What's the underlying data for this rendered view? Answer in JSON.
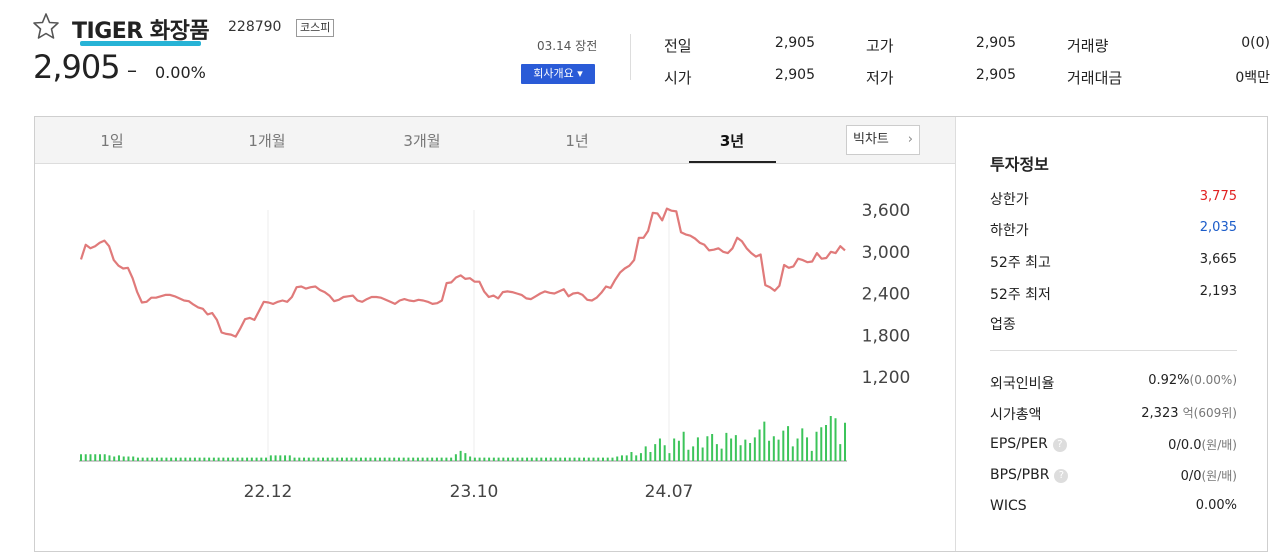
{
  "header": {
    "name": "TIGER 화장품",
    "code": "228790",
    "market": "코스피",
    "price": "2,905",
    "change_sign": "–",
    "change_pct": "0.00%",
    "date": "03.14 장전",
    "company_button": "회사개요 ▾"
  },
  "quotes": [
    {
      "label": "전일",
      "value": "2,905"
    },
    {
      "label": "고가",
      "value": "2,905"
    },
    {
      "label": "거래량",
      "value": "0(0)"
    },
    {
      "label": "시가",
      "value": "2,905"
    },
    {
      "label": "저가",
      "value": "2,905"
    },
    {
      "label": "거래대금",
      "value": "0백만"
    }
  ],
  "tabs": [
    "1일",
    "1개월",
    "3개월",
    "1년",
    "3년"
  ],
  "active_tab": "3년",
  "big_chart_button": "빅차트",
  "chart_data": {
    "type": "line",
    "y_ticks": [
      "3,600",
      "3,000",
      "2,400",
      "1,800",
      "1,200"
    ],
    "x_ticks": [
      "22.12",
      "23.10",
      "24.07"
    ],
    "ylim": [
      1200,
      3600
    ],
    "line_color": "#e07a7a",
    "volume_color": "#3cc45a",
    "series": [
      {
        "values": [
          2890,
          3100,
          3050,
          3080,
          3130,
          3160,
          3080,
          2880,
          2800,
          2760,
          2770,
          2620,
          2420,
          2270,
          2280,
          2340,
          2340,
          2360,
          2380,
          2380,
          2360,
          2330,
          2300,
          2290,
          2240,
          2200,
          2180,
          2100,
          2120,
          2020,
          1840,
          1820,
          1810,
          1780,
          1900,
          2030,
          2050,
          2020,
          2150,
          2280,
          2270,
          2250,
          2280,
          2300,
          2280,
          2350,
          2490,
          2500,
          2470,
          2490,
          2500,
          2450,
          2420,
          2370,
          2290,
          2310,
          2350,
          2360,
          2370,
          2300,
          2280,
          2320,
          2350,
          2350,
          2340,
          2310,
          2280,
          2250,
          2300,
          2320,
          2300,
          2290,
          2310,
          2300,
          2280,
          2250,
          2260,
          2300,
          2550,
          2560,
          2630,
          2660,
          2610,
          2620,
          2570,
          2570,
          2430,
          2350,
          2370,
          2330,
          2420,
          2430,
          2420,
          2400,
          2380,
          2330,
          2320,
          2360,
          2400,
          2430,
          2410,
          2400,
          2430,
          2460,
          2360,
          2400,
          2410,
          2380,
          2310,
          2300,
          2340,
          2410,
          2500,
          2480,
          2600,
          2700,
          2760,
          2800,
          2880,
          3200,
          3200,
          3300,
          3560,
          3550,
          3450,
          3620,
          3590,
          3580,
          3280,
          3250,
          3230,
          3190,
          3130,
          3100,
          3020,
          3030,
          3050,
          3000,
          2980,
          3050,
          3200,
          3150,
          3050,
          2980,
          2930,
          2960,
          2520,
          2490,
          2440,
          2510,
          2810,
          2770,
          2790,
          2900,
          2880,
          2850,
          2860,
          2980,
          2900,
          2910,
          3000,
          2980,
          3080,
          3020
        ]
      }
    ],
    "volume": [
      12,
      12,
      12,
      12,
      12,
      12,
      10,
      8,
      10,
      8,
      8,
      8,
      6,
      6,
      6,
      6,
      6,
      6,
      6,
      6,
      6,
      6,
      6,
      6,
      6,
      6,
      6,
      6,
      6,
      6,
      6,
      6,
      6,
      6,
      6,
      6,
      6,
      6,
      6,
      6,
      10,
      10,
      10,
      10,
      10,
      6,
      6,
      6,
      6,
      6,
      6,
      6,
      6,
      6,
      6,
      6,
      6,
      6,
      6,
      6,
      6,
      6,
      6,
      6,
      6,
      6,
      6,
      6,
      6,
      6,
      6,
      6,
      6,
      6,
      6,
      6,
      6,
      6,
      6,
      12,
      18,
      14,
      8,
      6,
      6,
      6,
      6,
      6,
      6,
      6,
      6,
      6,
      6,
      6,
      6,
      6,
      6,
      6,
      6,
      6,
      6,
      6,
      6,
      6,
      6,
      6,
      6,
      6,
      6,
      6,
      6,
      6,
      6,
      8,
      10,
      10,
      16,
      10,
      14,
      26,
      16,
      30,
      40,
      28,
      14,
      40,
      36,
      52,
      20,
      26,
      42,
      24,
      44,
      48,
      30,
      22,
      50,
      40,
      46,
      28,
      38,
      32,
      42,
      56,
      70,
      36,
      44,
      38,
      54,
      62,
      26,
      40,
      58,
      42,
      18,
      52,
      60,
      64,
      80,
      76,
      30,
      68
    ]
  },
  "info": {
    "title": "투자정보",
    "rows": [
      {
        "label": "상한가",
        "value": "3,775",
        "tone": "up"
      },
      {
        "label": "하한가",
        "value": "2,035",
        "tone": "down"
      },
      {
        "label": "52주 최고",
        "value": "3,665"
      },
      {
        "label": "52주 최저",
        "value": "2,193"
      },
      {
        "label": "업종",
        "value": ""
      }
    ],
    "rows2": [
      {
        "label": "외국인비율",
        "value": "0.92%",
        "sub": "(0.00%)"
      },
      {
        "label": "시가총액",
        "value": "2,323",
        "sub": "억(609위)"
      },
      {
        "label": "EPS/PER",
        "value": "0/0.0",
        "sub": "(원/배)",
        "help": "?"
      },
      {
        "label": "BPS/PBR",
        "value": "0/0",
        "sub": "(원/배)",
        "help": "?"
      },
      {
        "label": "WICS",
        "value": "0.00%"
      }
    ]
  }
}
